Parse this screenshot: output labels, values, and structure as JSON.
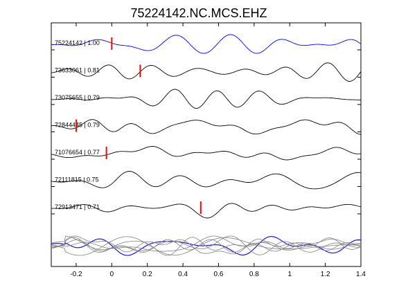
{
  "chart_data": {
    "type": "line",
    "title": "75224142.NC.MCS.EHZ",
    "xlabel": "",
    "ylabel": "",
    "xlim": [
      -0.34,
      1.4
    ],
    "x_ticks": [
      -0.2,
      0,
      0.2,
      0.4,
      0.6,
      0.8,
      1,
      1.2,
      1.4
    ],
    "x_tick_labels": [
      "-0.2",
      "0",
      "0.2",
      "0.4",
      "0.6",
      "0.8",
      "1",
      "1.2",
      "1.4"
    ],
    "grid": false,
    "legend": "none",
    "colors": {
      "reference_trace": "#0000ff",
      "trace": "#000000",
      "stack_trace": "#808080",
      "pick_marker": "#ff0000"
    },
    "traces": [
      {
        "label": "75224142 | 1.00",
        "event_id": "75224142",
        "correlation": 1.0,
        "pick_time": 0.0,
        "color": "#0000ff",
        "seed": 11
      },
      {
        "label": "73633061 | 0.81",
        "event_id": "73633061",
        "correlation": 0.81,
        "pick_time": 0.16,
        "color": "#000000",
        "seed": 23
      },
      {
        "label": "73075655 | 0.79",
        "event_id": "73075655",
        "correlation": 0.79,
        "pick_time": null,
        "color": "#000000",
        "seed": 37
      },
      {
        "label": "72844445 | 0.79",
        "event_id": "72844445",
        "correlation": 0.79,
        "pick_time": -0.2,
        "color": "#000000",
        "seed": 41
      },
      {
        "label": "71076654 | 0.77",
        "event_id": "71076654",
        "correlation": 0.77,
        "pick_time": -0.03,
        "color": "#000000",
        "seed": 53
      },
      {
        "label": "72111815 | 0.75",
        "event_id": "72111815",
        "correlation": 0.75,
        "pick_time": null,
        "color": "#000000",
        "seed": 67
      },
      {
        "label": "72913471 | 0.71",
        "event_id": "72913471",
        "correlation": 0.71,
        "pick_time": 0.5,
        "color": "#000000",
        "seed": 79
      }
    ],
    "stack": {
      "overlay_of_traces": true
    }
  }
}
